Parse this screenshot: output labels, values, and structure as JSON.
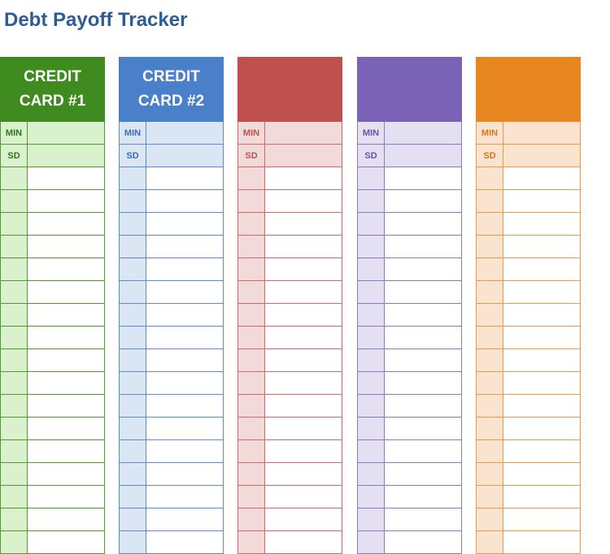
{
  "title": "Debt Payoff Tracker",
  "min_label": "MIN",
  "sd_label": "SD",
  "columns": [
    {
      "header": "CREDIT\nCARD #1",
      "main": "#3f8b1f",
      "light": "#d9f2cd",
      "line": "#4e9a2f",
      "text": "#2e7a12"
    },
    {
      "header": "CREDIT\nCARD #2",
      "main": "#4a7fc9",
      "light": "#dbe6f5",
      "line": "#5a8bd0",
      "text": "#3b6db5"
    },
    {
      "header": "",
      "main": "#c0504d",
      "light": "#f3dada",
      "line": "#cf6a67",
      "text": "#c0504d"
    },
    {
      "header": "",
      "main": "#7a62b6",
      "light": "#e5dff2",
      "line": "#8c77c0",
      "text": "#6a52a8"
    },
    {
      "header": "",
      "main": "#e8861f",
      "light": "#fbe4cf",
      "line": "#ec9a45",
      "text": "#d7761a"
    }
  ],
  "blank_rows": 17
}
